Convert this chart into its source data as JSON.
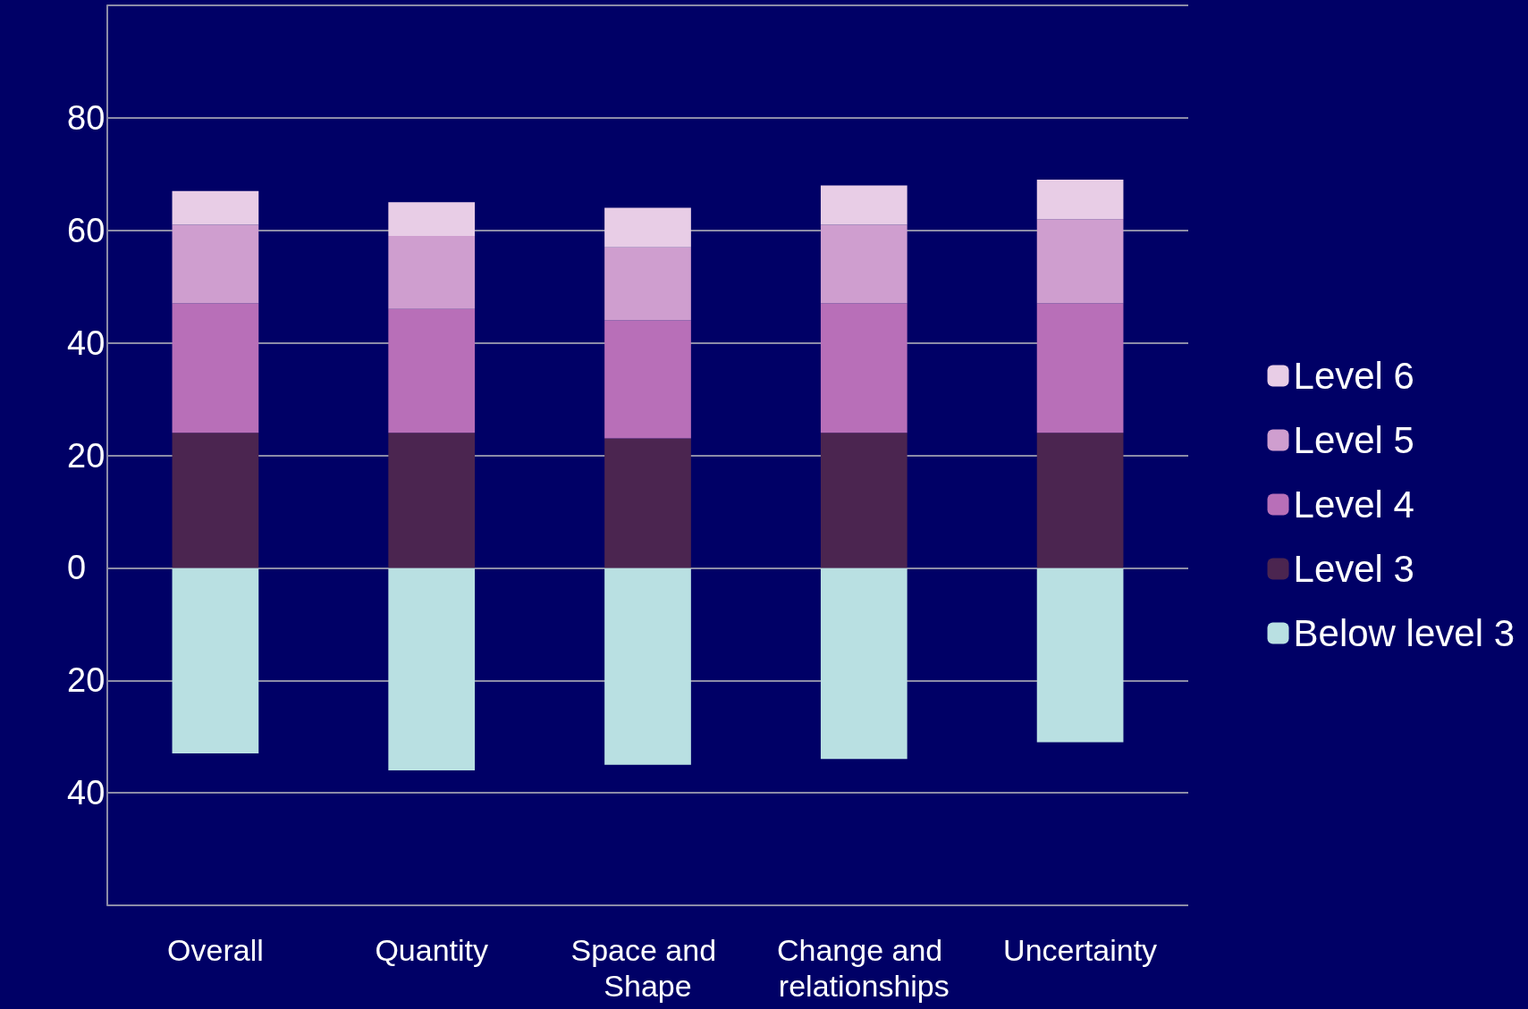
{
  "chart_data": {
    "type": "bar",
    "stacked": true,
    "categories": [
      "Overall",
      "Quantity",
      "Space and Shape",
      "Change and relationships",
      "Uncertainty"
    ],
    "series": [
      {
        "name": "Below level 3",
        "color": "#b9e0e2",
        "values": [
          -33,
          -36,
          -35,
          -34,
          -31
        ]
      },
      {
        "name": "Level 3",
        "color": "#4b2550",
        "values": [
          24,
          24,
          23,
          24,
          24
        ]
      },
      {
        "name": "Level 4",
        "color": "#b86fb8",
        "values": [
          23,
          22,
          21,
          23,
          23
        ]
      },
      {
        "name": "Level 5",
        "color": "#cf9ecf",
        "values": [
          14,
          13,
          13,
          14,
          15
        ]
      },
      {
        "name": "Level 6",
        "color": "#e8cde6",
        "values": [
          6,
          6,
          7,
          7,
          7
        ]
      }
    ],
    "ylim": [
      -60,
      100
    ],
    "yticks": [
      {
        "value": -60,
        "label": null
      },
      {
        "value": -40,
        "label": "40"
      },
      {
        "value": -20,
        "label": "20"
      },
      0,
      20,
      40,
      60,
      80,
      {
        "value": 100,
        "label": null
      }
    ],
    "grid": "y",
    "legend": "right"
  }
}
